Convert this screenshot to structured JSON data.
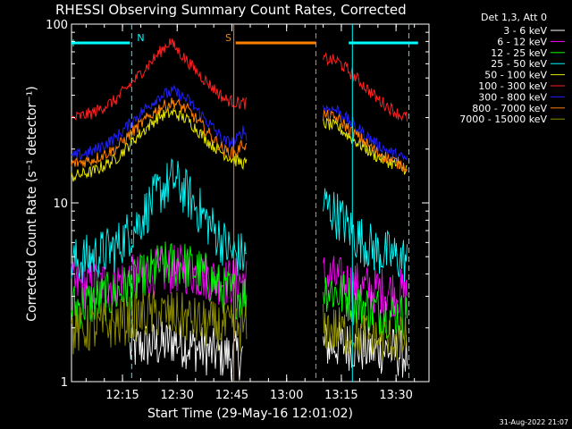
{
  "chart_data": {
    "type": "line",
    "title": "RHESSI Observing Summary Count Rates, Corrected",
    "xlabel": "Start Time (29-May-16 12:01:02)",
    "ylabel": "Corrected Count Rate (s⁻¹ detector⁻¹)",
    "yscale": "log",
    "ylim": [
      1,
      100
    ],
    "xlim_minutes_after_start": [
      0,
      98
    ],
    "x_start_time": "12:01:02",
    "x_ticks": [
      "12:15",
      "12:30",
      "12:45",
      "13:00",
      "13:15",
      "13:30"
    ],
    "y_ticks": [
      "1",
      "10",
      "100"
    ],
    "legend_header": "Det 1,3, Att 0",
    "series": [
      {
        "name": "3 - 6 keV",
        "color": "#ffffff",
        "segments": [
          {
            "x": [
              16,
              20,
              25,
              28,
              32,
              36,
              42,
              47
            ],
            "y": [
              1.5,
              1.6,
              1.6,
              1.7,
              1.6,
              1.5,
              1.4,
              1.4
            ]
          },
          {
            "x": [
              69,
              75,
              81,
              87,
              92
            ],
            "y": [
              1.6,
              1.6,
              1.5,
              1.5,
              1.4
            ]
          }
        ]
      },
      {
        "name": "6 - 12 keV",
        "color": "#ff00ff",
        "segments": [
          {
            "x": [
              0,
              6,
              12,
              18,
              24,
              30,
              36,
              42,
              48
            ],
            "y": [
              3.4,
              3.5,
              3.6,
              3.8,
              4.1,
              4.3,
              3.9,
              3.6,
              3.7
            ]
          },
          {
            "x": [
              69,
              75,
              81,
              87,
              92
            ],
            "y": [
              3.9,
              3.6,
              3.3,
              3.2,
              3.1
            ]
          }
        ]
      },
      {
        "name": "12 - 25 keV",
        "color": "#00ff00",
        "segments": [
          {
            "x": [
              0,
              6,
              12,
              18,
              24,
              30,
              36,
              42,
              48
            ],
            "y": [
              2.6,
              2.8,
              3.1,
              3.6,
              4.4,
              4.6,
              4.0,
              3.2,
              3.0
            ]
          },
          {
            "x": [
              69,
              75,
              81,
              87,
              92
            ],
            "y": [
              3.4,
              3.0,
              2.6,
              2.4,
              2.3
            ]
          }
        ]
      },
      {
        "name": "25 - 50 keV",
        "color": "#00ffff",
        "segments": [
          {
            "x": [
              0,
              6,
              12,
              18,
              24,
              28,
              32,
              38,
              44,
              48
            ],
            "y": [
              4.6,
              5.0,
              5.6,
              7.6,
              11.5,
              13.5,
              11.0,
              7.5,
              5.2,
              5.0
            ]
          },
          {
            "x": [
              69,
              73,
              78,
              84,
              90,
              92
            ],
            "y": [
              10.0,
              8.5,
              6.5,
              5.3,
              4.9,
              4.8
            ]
          }
        ]
      },
      {
        "name": "50 - 100 keV",
        "color": "#e6e600",
        "segments": [
          {
            "x": [
              0,
              6,
              12,
              18,
              24,
              28,
              32,
              38,
              44,
              48
            ],
            "y": [
              14.0,
              15.0,
              17.5,
              23.5,
              30.5,
              32.0,
              29.0,
              21.5,
              17.5,
              16.5
            ]
          },
          {
            "x": [
              69,
              73,
              78,
              84,
              90,
              92
            ],
            "y": [
              28.0,
              26.5,
              22.0,
              18.0,
              16.0,
              15.5
            ]
          }
        ]
      },
      {
        "name": "100 - 300 keV",
        "color": "#ff2020",
        "segments": [
          {
            "x": [
              0,
              6,
              12,
              18,
              24,
              27,
              30,
              36,
              42,
              45,
              48
            ],
            "y": [
              29.5,
              32.0,
              37.5,
              50.5,
              69.0,
              80.0,
              68.0,
              50.0,
              38.0,
              36.5,
              36.0
            ]
          },
          {
            "x": [
              69,
              73,
              78,
              84,
              90,
              92
            ],
            "y": [
              64.0,
              62.0,
              50.0,
              38.0,
              31.0,
              30.0
            ]
          }
        ]
      },
      {
        "name": "300 - 800 keV",
        "color": "#2020ff",
        "segments": [
          {
            "x": [
              0,
              6,
              12,
              18,
              24,
              28,
              32,
              38,
              42,
              45,
              47,
              48
            ],
            "y": [
              18.0,
              19.5,
              23.0,
              30.5,
              39.5,
              42.0,
              37.5,
              27.5,
              22.0,
              22.0,
              25.5,
              24.0
            ]
          },
          {
            "x": [
              69,
              73,
              78,
              84,
              90,
              92
            ],
            "y": [
              34.0,
              33.0,
              26.5,
              21.0,
              18.0,
              17.5
            ]
          }
        ]
      },
      {
        "name": "800 - 7000 keV",
        "color": "#ff8000",
        "segments": [
          {
            "x": [
              0,
              6,
              12,
              18,
              24,
              28,
              32,
              38,
              42,
              45,
              47,
              48
            ],
            "y": [
              16.5,
              17.5,
              20.0,
              26.5,
              34.0,
              36.5,
              33.0,
              24.0,
              19.5,
              19.0,
              21.5,
              20.5
            ]
          },
          {
            "x": [
              69,
              73,
              78,
              84,
              90,
              92
            ],
            "y": [
              31.0,
              29.5,
              24.0,
              19.0,
              16.5,
              16.0
            ]
          }
        ]
      },
      {
        "name": "7000 - 15000 keV",
        "color": "#909000",
        "segments": [
          {
            "x": [
              0,
              6,
              12,
              18,
              24,
              30,
              36,
              42,
              48
            ],
            "y": [
              1.9,
              2.0,
              2.1,
              2.3,
              2.4,
              2.3,
              2.1,
              2.0,
              2.0
            ]
          },
          {
            "x": [
              69,
              75,
              81,
              87,
              92
            ],
            "y": [
              2.0,
              1.9,
              1.8,
              1.7,
              1.7
            ]
          }
        ]
      }
    ],
    "flag_bars": [
      {
        "label": "",
        "color": "#00ffff",
        "x": [
          0,
          16
        ]
      },
      {
        "label": "N",
        "color": "#00ffff",
        "x": [
          19,
          19
        ]
      },
      {
        "label": "",
        "color": "#00ffff",
        "x": [
          76,
          95
        ]
      },
      {
        "label": "S",
        "color": "#ff8000",
        "x": [
          43,
          43
        ]
      },
      {
        "label": "",
        "color": "#ff8000",
        "x": [
          45,
          67
        ]
      }
    ],
    "vertical_lines": [
      {
        "x": 16.5,
        "color": "#00ffff",
        "dashed": true
      },
      {
        "x": 44.5,
        "color": "#ff8000",
        "dashed": false
      },
      {
        "x": 67,
        "color": "#ff8000",
        "dashed": true
      },
      {
        "x": 77,
        "color": "#00ffff",
        "dashed": false
      },
      {
        "x": 92.5,
        "color": "#00ffff",
        "dashed": true
      }
    ],
    "grid": false
  },
  "footer": {
    "date_stamp": "31-Aug-2022 21:07"
  }
}
